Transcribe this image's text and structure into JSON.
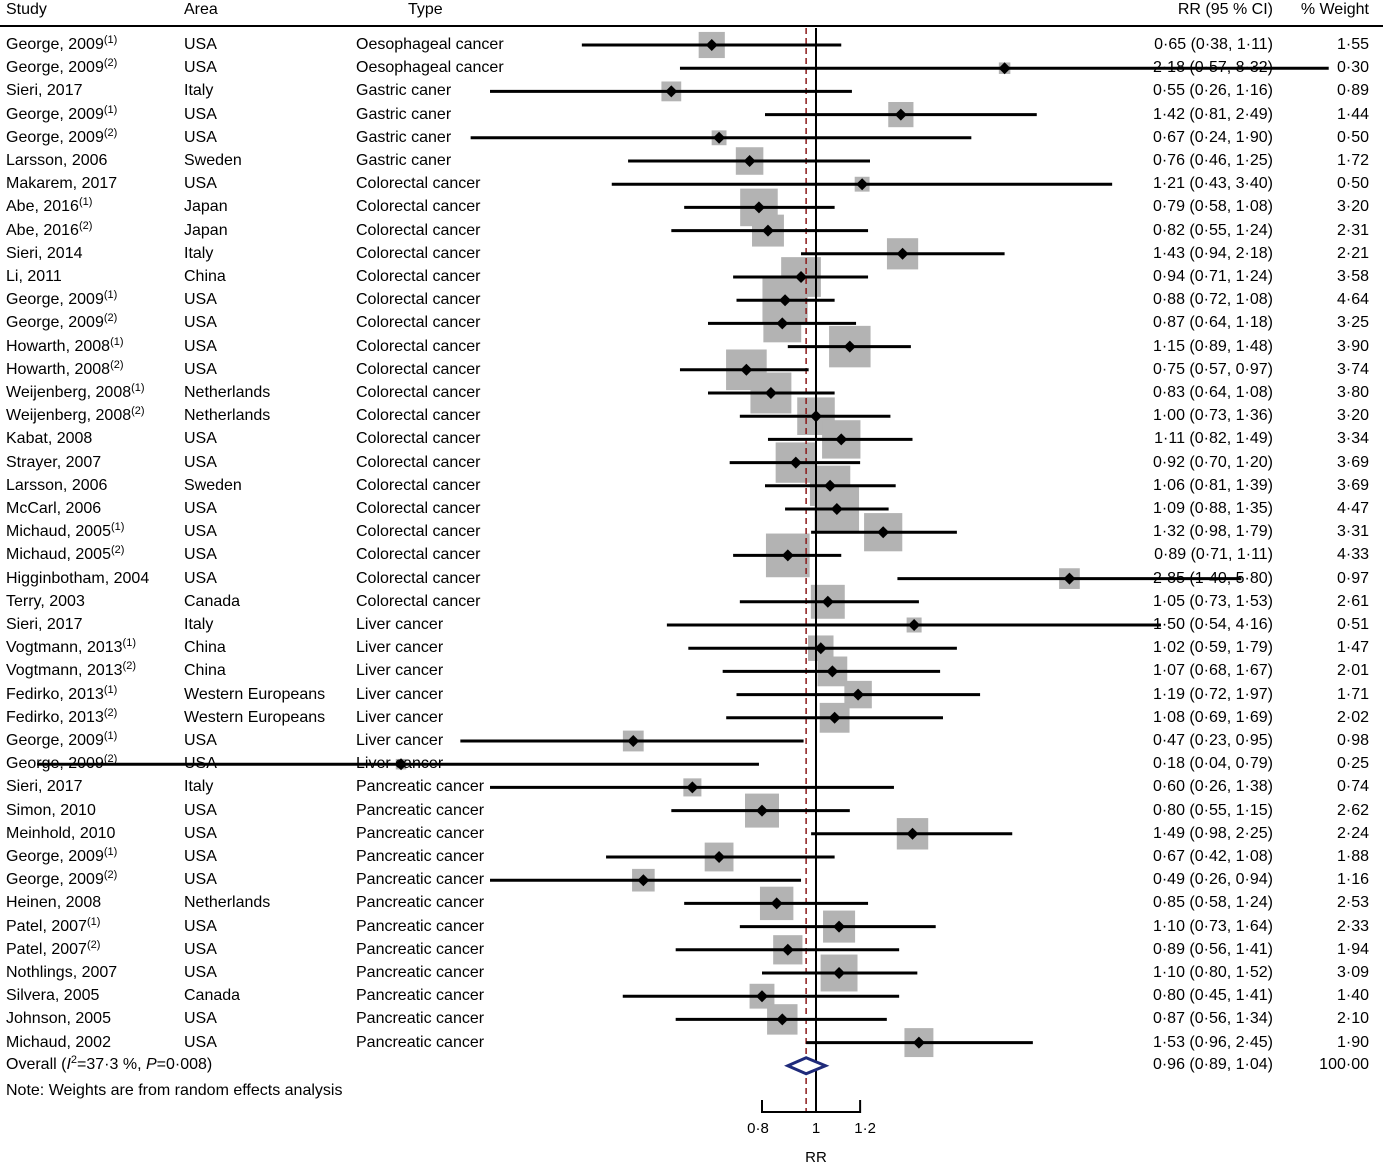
{
  "header": {
    "study": "Study",
    "area": "Area",
    "type": "Type",
    "rr_ci": "RR (95 % CI)",
    "weight": "% Weight"
  },
  "chart_data": {
    "type": "forest",
    "xlabel": "RR",
    "x_ticks": [
      "0·8",
      "1",
      "1·2"
    ],
    "x_tick_values": [
      0.8,
      1.0,
      1.2
    ],
    "null_line": 1.0,
    "scale": "log",
    "studies": [
      {
        "study": "George, 2009",
        "sup": "(1)",
        "area": "USA",
        "type": "Oesophageal cancer",
        "rr": 0.65,
        "lo": 0.38,
        "hi": 1.11,
        "rr_text": "0·65 (0·38, 1·11)",
        "weight": "1·55",
        "w": 1.55
      },
      {
        "study": "George, 2009",
        "sup": "(2)",
        "area": "USA",
        "type": "Oesophageal cancer",
        "rr": 2.18,
        "lo": 0.57,
        "hi": 8.32,
        "rr_text": "2·18 (0·57, 8·32)",
        "weight": "0·30",
        "w": 0.3
      },
      {
        "study": "Sieri, 2017",
        "sup": "",
        "area": "Italy",
        "type": "Gastric caner",
        "rr": 0.55,
        "lo": 0.26,
        "hi": 1.16,
        "rr_text": "0·55 (0·26, 1·16)",
        "weight": "0·89",
        "w": 0.89
      },
      {
        "study": "George, 2009",
        "sup": "(1)",
        "area": "USA",
        "type": "Gastric caner",
        "rr": 1.42,
        "lo": 0.81,
        "hi": 2.49,
        "rr_text": "1·42 (0·81, 2·49)",
        "weight": "1·44",
        "w": 1.44
      },
      {
        "study": "George, 2009",
        "sup": "(2)",
        "area": "USA",
        "type": "Gastric caner",
        "rr": 0.67,
        "lo": 0.24,
        "hi": 1.9,
        "rr_text": "0·67 (0·24, 1·90)",
        "weight": "0·50",
        "w": 0.5
      },
      {
        "study": "Larsson, 2006",
        "sup": "",
        "area": "Sweden",
        "type": "Gastric caner",
        "rr": 0.76,
        "lo": 0.46,
        "hi": 1.25,
        "rr_text": "0·76 (0·46, 1·25)",
        "weight": "1·72",
        "w": 1.72
      },
      {
        "study": "Makarem, 2017",
        "sup": "",
        "area": "USA",
        "type": "Colorectal cancer",
        "rr": 1.21,
        "lo": 0.43,
        "hi": 3.4,
        "rr_text": "1·21 (0·43, 3·40)",
        "weight": "0·50",
        "w": 0.5
      },
      {
        "study": "Abe, 2016",
        "sup": "(1)",
        "area": "Japan",
        "type": "Colorectal cancer",
        "rr": 0.79,
        "lo": 0.58,
        "hi": 1.08,
        "rr_text": "0·79 (0·58, 1·08)",
        "weight": "3·20",
        "w": 3.2
      },
      {
        "study": "Abe, 2016",
        "sup": "(2)",
        "area": "Japan",
        "type": "Colorectal cancer",
        "rr": 0.82,
        "lo": 0.55,
        "hi": 1.24,
        "rr_text": "0·82 (0·55, 1·24)",
        "weight": "2·31",
        "w": 2.31
      },
      {
        "study": "Sieri, 2014",
        "sup": "",
        "area": "Italy",
        "type": "Colorectal cancer",
        "rr": 1.43,
        "lo": 0.94,
        "hi": 2.18,
        "rr_text": "1·43 (0·94, 2·18)",
        "weight": "2·21",
        "w": 2.21
      },
      {
        "study": "Li, 2011",
        "sup": "",
        "area": "China",
        "type": "Colorectal cancer",
        "rr": 0.94,
        "lo": 0.71,
        "hi": 1.24,
        "rr_text": "0·94 (0·71, 1·24)",
        "weight": "3·58",
        "w": 3.58
      },
      {
        "study": "George, 2009",
        "sup": "(1)",
        "area": "USA",
        "type": "Colorectal cancer",
        "rr": 0.88,
        "lo": 0.72,
        "hi": 1.08,
        "rr_text": "0·88 (0·72, 1·08)",
        "weight": "4·64",
        "w": 4.64
      },
      {
        "study": "George, 2009",
        "sup": "(2)",
        "area": "USA",
        "type": "Colorectal cancer",
        "rr": 0.87,
        "lo": 0.64,
        "hi": 1.18,
        "rr_text": "0·87 (0·64, 1·18)",
        "weight": "3·25",
        "w": 3.25
      },
      {
        "study": "Howarth, 2008",
        "sup": "(1)",
        "area": "USA",
        "type": "Colorectal cancer",
        "rr": 1.15,
        "lo": 0.89,
        "hi": 1.48,
        "rr_text": "1·15 (0·89, 1·48)",
        "weight": "3·90",
        "w": 3.9
      },
      {
        "study": "Howarth, 2008",
        "sup": "(2)",
        "area": "USA",
        "type": "Colorectal cancer",
        "rr": 0.75,
        "lo": 0.57,
        "hi": 0.97,
        "rr_text": "0·75 (0·57, 0·97)",
        "weight": "3·74",
        "w": 3.74
      },
      {
        "study": "Weijenberg, 2008",
        "sup": "(1)",
        "area": "Netherlands",
        "type": "Colorectal cancer",
        "rr": 0.83,
        "lo": 0.64,
        "hi": 1.08,
        "rr_text": "0·83 (0·64, 1·08)",
        "weight": "3·80",
        "w": 3.8
      },
      {
        "study": "Weijenberg, 2008",
        "sup": "(2)",
        "area": "Netherlands",
        "type": "Colorectal cancer",
        "rr": 1.0,
        "lo": 0.73,
        "hi": 1.36,
        "rr_text": "1·00 (0·73, 1·36)",
        "weight": "3·20",
        "w": 3.2
      },
      {
        "study": "Kabat, 2008",
        "sup": "",
        "area": "USA",
        "type": "Colorectal cancer",
        "rr": 1.11,
        "lo": 0.82,
        "hi": 1.49,
        "rr_text": "1·11 (0·82, 1·49)",
        "weight": "3·34",
        "w": 3.34
      },
      {
        "study": "Strayer, 2007",
        "sup": "",
        "area": "USA",
        "type": "Colorectal cancer",
        "rr": 0.92,
        "lo": 0.7,
        "hi": 1.2,
        "rr_text": "0·92 (0·70, 1·20)",
        "weight": "3·69",
        "w": 3.69
      },
      {
        "study": "Larsson, 2006",
        "sup": "",
        "area": "Sweden",
        "type": "Colorectal cancer",
        "rr": 1.06,
        "lo": 0.81,
        "hi": 1.39,
        "rr_text": "1·06 (0·81, 1·39)",
        "weight": "3·69",
        "w": 3.69
      },
      {
        "study": "McCarl, 2006",
        "sup": "",
        "area": "USA",
        "type": "Colorectal cancer",
        "rr": 1.09,
        "lo": 0.88,
        "hi": 1.35,
        "rr_text": "1·09 (0·88, 1·35)",
        "weight": "4·47",
        "w": 4.47
      },
      {
        "study": "Michaud, 2005",
        "sup": "(1)",
        "area": "USA",
        "type": "Colorectal cancer",
        "rr": 1.32,
        "lo": 0.98,
        "hi": 1.79,
        "rr_text": "1·32 (0·98, 1·79)",
        "weight": "3·31",
        "w": 3.31
      },
      {
        "study": "Michaud, 2005",
        "sup": "(2)",
        "area": "USA",
        "type": "Colorectal cancer",
        "rr": 0.89,
        "lo": 0.71,
        "hi": 1.11,
        "rr_text": "0·89 (0·71, 1·11)",
        "weight": "4·33",
        "w": 4.33
      },
      {
        "study": "Higginbotham, 2004",
        "sup": "",
        "area": "USA",
        "type": "Colorectal cancer",
        "rr": 2.85,
        "lo": 1.4,
        "hi": 5.8,
        "rr_text": "2·85 (1·40, 5·80)",
        "weight": "0·97",
        "w": 0.97
      },
      {
        "study": "Terry, 2003",
        "sup": "",
        "area": "Canada",
        "type": "Colorectal cancer",
        "rr": 1.05,
        "lo": 0.73,
        "hi": 1.53,
        "rr_text": "1·05 (0·73, 1·53)",
        "weight": "2·61",
        "w": 2.61
      },
      {
        "study": "Sieri, 2017",
        "sup": "",
        "area": "Italy",
        "type": "Liver cancer",
        "rr": 1.5,
        "lo": 0.54,
        "hi": 4.16,
        "rr_text": "1·50 (0·54, 4·16)",
        "weight": "0·51",
        "w": 0.51
      },
      {
        "study": "Vogtmann, 2013",
        "sup": "(1)",
        "area": "China",
        "type": "Liver cancer",
        "rr": 1.02,
        "lo": 0.59,
        "hi": 1.79,
        "rr_text": "1·02 (0·59, 1·79)",
        "weight": "1·47",
        "w": 1.47
      },
      {
        "study": "Vogtmann, 2013",
        "sup": "(2)",
        "area": "China",
        "type": "Liver cancer",
        "rr": 1.07,
        "lo": 0.68,
        "hi": 1.67,
        "rr_text": "1·07 (0·68, 1·67)",
        "weight": "2·01",
        "w": 2.01
      },
      {
        "study": "Fedirko, 2013",
        "sup": "(1)",
        "area": "Western Europeans",
        "type": "Liver cancer",
        "rr": 1.19,
        "lo": 0.72,
        "hi": 1.97,
        "rr_text": "1·19 (0·72, 1·97)",
        "weight": "1·71",
        "w": 1.71
      },
      {
        "study": "Fedirko, 2013",
        "sup": "(2)",
        "area": "Western Europeans",
        "type": "Liver cancer",
        "rr": 1.08,
        "lo": 0.69,
        "hi": 1.69,
        "rr_text": "1·08 (0·69, 1·69)",
        "weight": "2·02",
        "w": 2.02
      },
      {
        "study": "George, 2009",
        "sup": "(1)",
        "area": "USA",
        "type": "Liver cancer",
        "rr": 0.47,
        "lo": 0.23,
        "hi": 0.95,
        "rr_text": "0·47 (0·23, 0·95)",
        "weight": "0·98",
        "w": 0.98
      },
      {
        "study": "George, 2009",
        "sup": "(2)",
        "area": "USA",
        "type": "Liver cancer",
        "rr": 0.18,
        "lo": 0.04,
        "hi": 0.79,
        "rr_text": "0·18 (0·04, 0·79)",
        "weight": "0·25",
        "w": 0.25
      },
      {
        "study": "Sieri, 2017",
        "sup": "",
        "area": "Italy",
        "type": "Pancreatic cancer",
        "rr": 0.6,
        "lo": 0.26,
        "hi": 1.38,
        "rr_text": "0·60 (0·26, 1·38)",
        "weight": "0·74",
        "w": 0.74
      },
      {
        "study": "Simon, 2010",
        "sup": "",
        "area": "USA",
        "type": "Pancreatic cancer",
        "rr": 0.8,
        "lo": 0.55,
        "hi": 1.15,
        "rr_text": "0·80 (0·55, 1·15)",
        "weight": "2·62",
        "w": 2.62
      },
      {
        "study": "Meinhold, 2010",
        "sup": "",
        "area": "USA",
        "type": "Pancreatic cancer",
        "rr": 1.49,
        "lo": 0.98,
        "hi": 2.25,
        "rr_text": "1·49 (0·98, 2·25)",
        "weight": "2·24",
        "w": 2.24
      },
      {
        "study": "George, 2009",
        "sup": "(1)",
        "area": "USA",
        "type": "Pancreatic cancer",
        "rr": 0.67,
        "lo": 0.42,
        "hi": 1.08,
        "rr_text": "0·67 (0·42, 1·08)",
        "weight": "1·88",
        "w": 1.88
      },
      {
        "study": "George, 2009",
        "sup": "(2)",
        "area": "USA",
        "type": "Pancreatic cancer",
        "rr": 0.49,
        "lo": 0.26,
        "hi": 0.94,
        "rr_text": "0·49 (0·26, 0·94)",
        "weight": "1·16",
        "w": 1.16
      },
      {
        "study": "Heinen, 2008",
        "sup": "",
        "area": "Netherlands",
        "type": "Pancreatic cancer",
        "rr": 0.85,
        "lo": 0.58,
        "hi": 1.24,
        "rr_text": "0·85 (0·58, 1·24)",
        "weight": "2·53",
        "w": 2.53
      },
      {
        "study": "Patel, 2007",
        "sup": "(1)",
        "area": "USA",
        "type": "Pancreatic cancer",
        "rr": 1.1,
        "lo": 0.73,
        "hi": 1.64,
        "rr_text": "1·10 (0·73, 1·64)",
        "weight": "2·33",
        "w": 2.33
      },
      {
        "study": "Patel, 2007",
        "sup": "(2)",
        "area": "USA",
        "type": "Pancreatic cancer",
        "rr": 0.89,
        "lo": 0.56,
        "hi": 1.41,
        "rr_text": "0·89 (0·56, 1·41)",
        "weight": "1·94",
        "w": 1.94
      },
      {
        "study": "Nothlings, 2007",
        "sup": "",
        "area": "USA",
        "type": "Pancreatic cancer",
        "rr": 1.1,
        "lo": 0.8,
        "hi": 1.52,
        "rr_text": "1·10 (0·80, 1·52)",
        "weight": "3·09",
        "w": 3.09
      },
      {
        "study": "Silvera, 2005",
        "sup": "",
        "area": "Canada",
        "type": "Pancreatic cancer",
        "rr": 0.8,
        "lo": 0.45,
        "hi": 1.41,
        "rr_text": "0·80 (0·45, 1·41)",
        "weight": "1·40",
        "w": 1.4
      },
      {
        "study": "Johnson, 2005",
        "sup": "",
        "area": "USA",
        "type": "Pancreatic cancer",
        "rr": 0.87,
        "lo": 0.56,
        "hi": 1.34,
        "rr_text": "0·87 (0·56, 1·34)",
        "weight": "2·10",
        "w": 2.1
      },
      {
        "study": "Michaud, 2002",
        "sup": "",
        "area": "USA",
        "type": "Pancreatic cancer",
        "rr": 1.53,
        "lo": 0.96,
        "hi": 2.45,
        "rr_text": "1·53 (0·96, 2·45)",
        "weight": "1·90",
        "w": 1.9
      }
    ],
    "overall": {
      "label_prefix": "Overall (",
      "label_i": "I",
      "label_sup": "2",
      "label_mid": "=37·3 %, ",
      "label_p": "P",
      "label_end": "=0·008)",
      "rr": 0.96,
      "lo": 0.89,
      "hi": 1.04,
      "rr_text": "0·96 (0·89, 1·04)",
      "weight": "100·00"
    },
    "note": "Note: Weights are from random effects analysis",
    "colors": {
      "box": "#b3b3b3",
      "line": "#000000",
      "overall_diamond": "#1f2a7a",
      "overall_line": "#8b1a1a"
    }
  }
}
